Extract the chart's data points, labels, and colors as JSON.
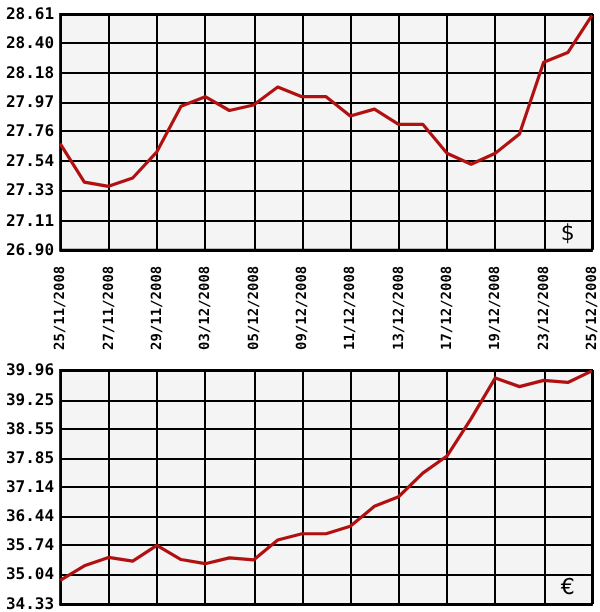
{
  "chart_data": [
    {
      "type": "line",
      "categories": [
        "25/11/2008",
        null,
        "27/11/2008",
        null,
        "29/11/2008",
        null,
        "03/12/2008",
        null,
        "05/12/2008",
        null,
        "09/12/2008",
        null,
        "11/12/2008",
        null,
        "13/12/2008",
        null,
        "17/12/2008",
        null,
        "19/12/2008",
        null,
        "23/12/2008",
        null,
        "25/12/2008"
      ],
      "series": [
        {
          "color": "#b01010",
          "values": [
            27.67,
            27.39,
            27.36,
            27.42,
            27.61,
            27.94,
            28.01,
            27.91,
            27.95,
            28.08,
            28.01,
            28.01,
            27.87,
            27.92,
            27.81,
            27.81,
            27.6,
            27.52,
            27.6,
            27.74,
            28.26,
            28.33,
            28.6
          ]
        }
      ],
      "ylim": [
        26.9,
        28.61
      ],
      "yticks": [
        {
          "value": 26.9,
          "label": "26.90"
        },
        27.11,
        27.33,
        27.54,
        27.76,
        27.97,
        28.18,
        {
          "value": 28.4,
          "label": "28.40"
        },
        28.61
      ],
      "grid": true,
      "marker": "none",
      "annotations": [
        "$"
      ]
    },
    {
      "type": "line",
      "categories": [
        null,
        null,
        null,
        null,
        null,
        null,
        null,
        null,
        null,
        null,
        null,
        null,
        null,
        null,
        null,
        null,
        null,
        null,
        null,
        null,
        null,
        null,
        null
      ],
      "series": [
        {
          "color": "#b01010",
          "values": [
            34.9,
            35.25,
            35.45,
            35.36,
            35.74,
            35.4,
            35.3,
            35.44,
            35.39,
            35.87,
            36.02,
            36.02,
            36.2,
            36.68,
            36.91,
            37.48,
            37.89,
            38.79,
            39.77,
            39.56,
            39.71,
            39.66,
            39.94
          ]
        }
      ],
      "ylim": [
        34.33,
        39.96
      ],
      "yticks": [
        34.33,
        35.04,
        35.74,
        36.44,
        37.14,
        37.85,
        38.55,
        39.25,
        39.96
      ],
      "grid": true,
      "marker": "none",
      "tick_labels": "y",
      "annotations": [
        "€"
      ]
    }
  ]
}
